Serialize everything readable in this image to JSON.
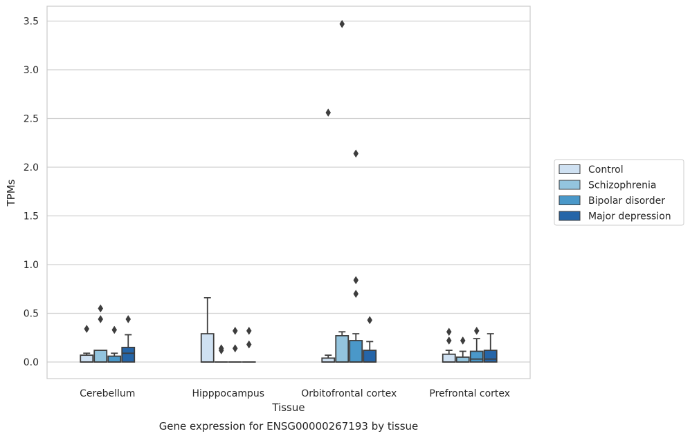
{
  "chart_data": {
    "type": "box",
    "title": "",
    "caption": "Gene expression for ENSG00000267193 by tissue",
    "xlabel": "Tissue",
    "ylabel": "TPMs",
    "ylim": [
      -0.17,
      3.65
    ],
    "yticks": [
      0.0,
      0.5,
      1.0,
      1.5,
      2.0,
      2.5,
      3.0,
      3.5
    ],
    "ytick_labels": [
      "0.0",
      "0.5",
      "1.0",
      "1.5",
      "2.0",
      "2.5",
      "3.0",
      "3.5"
    ],
    "grid": "horizontal",
    "legend_position": "outside-right",
    "categories": [
      "Cerebellum",
      "Hipppocampus",
      "Orbitofrontal cortex",
      "Prefrontal cortex"
    ],
    "series": [
      {
        "name": "Control",
        "color": "#cfe1f2",
        "boxes": [
          {
            "q1": 0.0,
            "median": 0.0,
            "q3": 0.07,
            "wlow": 0.0,
            "whigh": 0.09,
            "outliers": [
              0.34
            ]
          },
          {
            "q1": 0.0,
            "median": 0.0,
            "q3": 0.29,
            "wlow": 0.0,
            "whigh": 0.66,
            "outliers": []
          },
          {
            "q1": 0.0,
            "median": 0.0,
            "q3": 0.04,
            "wlow": 0.0,
            "whigh": 0.07,
            "outliers": [
              2.56
            ]
          },
          {
            "q1": 0.0,
            "median": 0.0,
            "q3": 0.08,
            "wlow": 0.0,
            "whigh": 0.12,
            "outliers": [
              0.22,
              0.31
            ]
          }
        ]
      },
      {
        "name": "Schizophrenia",
        "color": "#93c4de",
        "boxes": [
          {
            "q1": 0.0,
            "median": 0.0,
            "q3": 0.12,
            "wlow": 0.0,
            "whigh": 0.12,
            "outliers": [
              0.44,
              0.55
            ]
          },
          {
            "q1": 0.0,
            "median": 0.0,
            "q3": 0.0,
            "wlow": 0.0,
            "whigh": 0.0,
            "outliers": [
              0.12,
              0.14
            ]
          },
          {
            "q1": 0.0,
            "median": 0.0,
            "q3": 0.27,
            "wlow": 0.0,
            "whigh": 0.31,
            "outliers": [
              3.47
            ]
          },
          {
            "q1": 0.0,
            "median": 0.0,
            "q3": 0.05,
            "wlow": 0.0,
            "whigh": 0.11,
            "outliers": [
              0.22
            ]
          }
        ]
      },
      {
        "name": "Bipolar disorder",
        "color": "#4a98c9",
        "boxes": [
          {
            "q1": 0.0,
            "median": 0.0,
            "q3": 0.06,
            "wlow": 0.0,
            "whigh": 0.09,
            "outliers": [
              0.33
            ]
          },
          {
            "q1": 0.0,
            "median": 0.0,
            "q3": 0.0,
            "wlow": 0.0,
            "whigh": 0.0,
            "outliers": [
              0.14,
              0.32
            ]
          },
          {
            "q1": 0.0,
            "median": 0.0,
            "q3": 0.22,
            "wlow": 0.0,
            "whigh": 0.29,
            "outliers": [
              0.7,
              0.84,
              2.14
            ]
          },
          {
            "q1": 0.0,
            "median": 0.03,
            "q3": 0.11,
            "wlow": 0.0,
            "whigh": 0.24,
            "outliers": [
              0.32
            ]
          }
        ]
      },
      {
        "name": "Major depression",
        "color": "#2565a8",
        "boxes": [
          {
            "q1": 0.0,
            "median": 0.09,
            "q3": 0.15,
            "wlow": 0.0,
            "whigh": 0.28,
            "outliers": [
              0.44
            ]
          },
          {
            "q1": 0.0,
            "median": 0.0,
            "q3": 0.0,
            "wlow": 0.0,
            "whigh": 0.0,
            "outliers": [
              0.18,
              0.32
            ]
          },
          {
            "q1": 0.0,
            "median": 0.0,
            "q3": 0.12,
            "wlow": 0.0,
            "whigh": 0.21,
            "outliers": [
              0.43
            ]
          },
          {
            "q1": 0.0,
            "median": 0.03,
            "q3": 0.12,
            "wlow": 0.0,
            "whigh": 0.29,
            "outliers": []
          }
        ]
      }
    ]
  }
}
